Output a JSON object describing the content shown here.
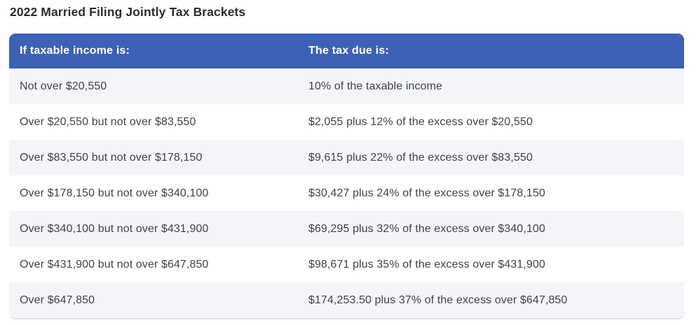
{
  "page": {
    "title": "2022 Married Filing Jointly Tax Brackets"
  },
  "table": {
    "columns": [
      {
        "label": "If taxable income is:"
      },
      {
        "label": "The tax due is:"
      }
    ],
    "rows": [
      {
        "income": "Not over $20,550",
        "tax": "10% of the taxable income"
      },
      {
        "income": "Over $20,550 but not over $83,550",
        "tax": "$2,055 plus 12% of the excess over $20,550"
      },
      {
        "income": "Over $83,550 but not over $178,150",
        "tax": "$9,615 plus 22% of the excess over $83,550"
      },
      {
        "income": "Over $178,150 but not over $340,100",
        "tax": "$30,427 plus 24% of the excess over $178,150"
      },
      {
        "income": "Over $340,100 but not over $431,900",
        "tax": "$69,295 plus 32% of the excess over $340,100"
      },
      {
        "income": "Over $431,900 but not over $647,850",
        "tax": "$98,671 plus 35% of the excess over $431,900"
      },
      {
        "income": "Over $647,850",
        "tax": "$174,253.50 plus 37% of the excess over $647,850"
      }
    ]
  },
  "colors": {
    "header_bg": "#3c61b5",
    "header_text": "#ffffff",
    "row_alt_bg": "#f4f5f9",
    "row_bg": "#ffffff",
    "body_text": "#3f4347",
    "title_text": "#2a2c2f",
    "bottom_rule": "#dfe2ec"
  }
}
